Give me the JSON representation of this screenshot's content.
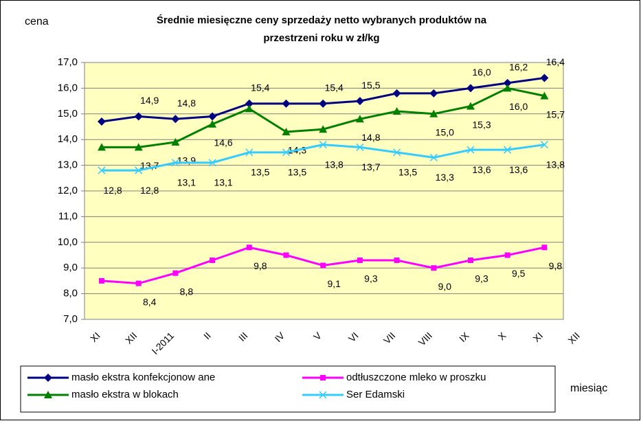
{
  "chart_data": {
    "type": "line",
    "title": [
      "Średnie miesięczne ceny sprzedaży netto  wybranych produktów na",
      "przestrzeni roku w zł/kg"
    ],
    "y_label": "cena",
    "x_label": "miesiąc",
    "categories": [
      "XI",
      "XII",
      "I-2011",
      "II",
      "III",
      "IV",
      "V",
      "VI",
      "VII",
      "VIII",
      "IX",
      "X",
      "XI",
      "XII"
    ],
    "ylim": [
      7,
      17
    ],
    "yticks": [
      {
        "value": 7,
        "label": "7,0"
      },
      {
        "value": 8,
        "label": "8,0"
      },
      {
        "value": 9,
        "label": "9,0"
      },
      {
        "value": 10,
        "label": "10,0"
      },
      {
        "value": 11,
        "label": "11,0"
      },
      {
        "value": 12,
        "label": "12,0"
      },
      {
        "value": 13,
        "label": "13,0"
      },
      {
        "value": 14,
        "label": "14,0"
      },
      {
        "value": 15,
        "label": "15,0"
      },
      {
        "value": 16,
        "label": "16,0"
      },
      {
        "value": 17,
        "label": "17,0"
      }
    ],
    "grid": true,
    "series": [
      {
        "name": "masło ekstra konfekcjonow ane",
        "color": "#000080",
        "marker": "diamond",
        "values": [
          14.7,
          14.9,
          14.8,
          14.9,
          15.4,
          15.4,
          15.4,
          15.5,
          15.8,
          15.8,
          16.0,
          16.2,
          16.4,
          null
        ],
        "value_labels": [
          null,
          "14,9",
          "14,8",
          null,
          "15,4",
          null,
          "15,4",
          "15,5",
          null,
          null,
          "16,0",
          "16,2",
          "16,4",
          null
        ]
      },
      {
        "name": "odtłuszczone mleko w  proszku",
        "color": "#FF00FF",
        "marker": "square",
        "values": [
          8.5,
          8.4,
          8.8,
          9.3,
          9.8,
          9.5,
          9.1,
          9.3,
          9.3,
          9.0,
          9.3,
          9.5,
          9.8,
          null
        ],
        "value_labels": [
          null,
          "8,4",
          "8,8",
          null,
          "9,8",
          null,
          "9,1",
          "9,3",
          null,
          "9,0",
          "9,3",
          "9,5",
          "9,8",
          null
        ]
      },
      {
        "name": "masło ekstra w  blokach",
        "color": "#008000",
        "marker": "triangle",
        "values": [
          13.7,
          13.7,
          13.9,
          14.6,
          15.2,
          14.3,
          14.4,
          14.8,
          15.1,
          15.0,
          15.3,
          16.0,
          15.7,
          null
        ],
        "value_labels": [
          null,
          "13,7",
          "13,9",
          "14,6",
          null,
          "14,3",
          null,
          "14,8",
          null,
          "15,0",
          "15,3",
          "16,0",
          "15,7",
          null
        ]
      },
      {
        "name": "Ser Edamski",
        "color": "#33CCFF",
        "marker": "x",
        "values": [
          12.8,
          12.8,
          13.1,
          13.1,
          13.5,
          13.5,
          13.8,
          13.7,
          13.5,
          13.3,
          13.6,
          13.6,
          13.8,
          null
        ],
        "value_labels": [
          "12,8",
          "12,8",
          "13,1",
          "13,1",
          "13,5",
          "13,5",
          "13,8",
          "13,7",
          "13,5",
          "13,3",
          "13,6",
          "13,6",
          "13,8",
          null
        ]
      }
    ]
  }
}
